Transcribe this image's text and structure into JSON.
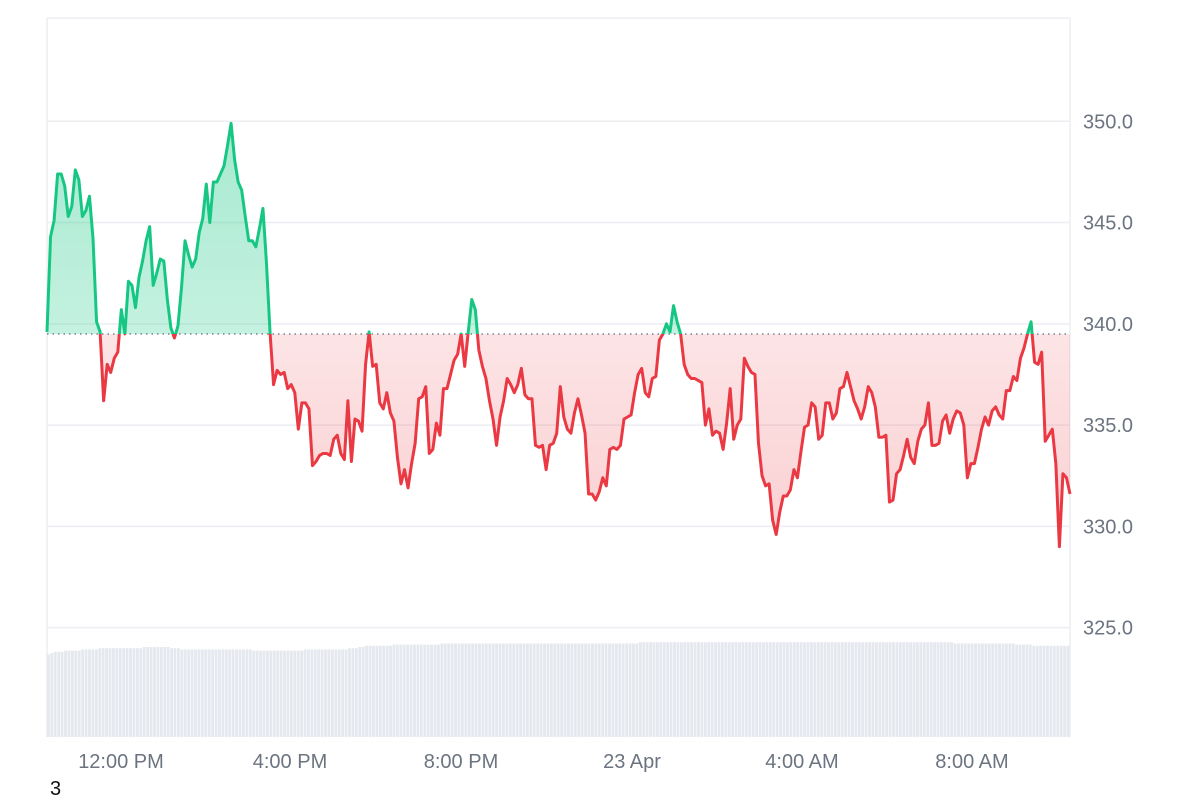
{
  "chart_data": {
    "type": "area",
    "baseline": 339.5,
    "ylim": [
      319.6,
      355.1
    ],
    "y_ticks": [
      "325.0",
      "330.0",
      "335.0",
      "340.0",
      "345.0",
      "350.0"
    ],
    "x_ticks": [
      "12:00 PM",
      "4:00 PM",
      "8:00 PM",
      "23 Apr",
      "4:00 AM",
      "8:00 AM"
    ],
    "grid": true,
    "series": [
      {
        "values": [
          339.6,
          344.3,
          345.1,
          347.4,
          347.4,
          346.8,
          345.3,
          345.8,
          347.6,
          347.1,
          345.3,
          345.6,
          346.3,
          344.2,
          340.1,
          339.6,
          336.2,
          338.0,
          337.6,
          338.3,
          338.6,
          340.7,
          339.5,
          342.1,
          341.9,
          340.8,
          342.3,
          343.1,
          344.1,
          344.8,
          341.9,
          342.5,
          343.2,
          343.1,
          341.2,
          339.8,
          339.3,
          339.9,
          341.8,
          344.1,
          343.4,
          342.8,
          343.2,
          344.5,
          345.2,
          346.9,
          345.0,
          347.0,
          347.0,
          347.4,
          347.8,
          348.8,
          349.9,
          348.1,
          347.0,
          346.6,
          345.3,
          344.1,
          344.1,
          343.8,
          344.7,
          345.7,
          343.0,
          339.6,
          337.0,
          337.7,
          337.5,
          337.6,
          336.8,
          337.0,
          336.6,
          334.8,
          336.1,
          336.1,
          335.8,
          333.0,
          333.2,
          333.5,
          333.6,
          333.6,
          333.5,
          334.3,
          334.5,
          333.6,
          333.3,
          336.2,
          333.2,
          335.3,
          335.2,
          334.7,
          338.0,
          339.6,
          337.9,
          338.0,
          336.1,
          335.8,
          336.6,
          335.6,
          335.2,
          333.4,
          332.1,
          332.8,
          331.9,
          333.1,
          334.1,
          336.3,
          336.4,
          336.9,
          333.6,
          333.8,
          335.1,
          334.5,
          336.8,
          336.8,
          337.5,
          338.2,
          338.5,
          339.5,
          337.9,
          339.6,
          341.2,
          340.7,
          338.7,
          337.9,
          337.3,
          336.2,
          335.3,
          334.0,
          335.4,
          336.2,
          337.3,
          337.0,
          336.6,
          337.0,
          337.8,
          336.5,
          336.3,
          336.3,
          334.0,
          333.9,
          334.0,
          332.8,
          334.0,
          334.1,
          334.6,
          336.9,
          335.4,
          334.8,
          334.6,
          335.6,
          336.3,
          335.5,
          334.6,
          331.6,
          331.6,
          331.3,
          331.7,
          332.4,
          332.0,
          333.8,
          333.9,
          333.8,
          334.0,
          335.3,
          335.4,
          335.5,
          336.6,
          337.5,
          337.8,
          336.6,
          336.4,
          337.3,
          337.4,
          339.2,
          339.5,
          340.0,
          339.6,
          340.9,
          340.1,
          339.5,
          338.0,
          337.5,
          337.3,
          337.3,
          337.2,
          337.1,
          335.0,
          335.8,
          334.5,
          334.7,
          334.6,
          333.8,
          335.1,
          336.8,
          334.3,
          335.0,
          335.3,
          338.3,
          337.9,
          337.6,
          337.5,
          334.1,
          332.5,
          332.0,
          332.1,
          330.3,
          329.6,
          330.7,
          331.5,
          331.5,
          331.8,
          332.8,
          332.4,
          333.7,
          334.9,
          335.0,
          336.1,
          335.9,
          334.3,
          334.5,
          336.1,
          336.1,
          335.3,
          335.6,
          336.8,
          336.9,
          337.6,
          336.9,
          336.2,
          335.8,
          335.3,
          335.9,
          336.9,
          336.6,
          335.9,
          334.4,
          334.4,
          334.5,
          331.2,
          331.3,
          332.6,
          332.8,
          333.5,
          334.3,
          333.4,
          333.1,
          334.2,
          334.8,
          335.0,
          336.1,
          334.0,
          334.0,
          334.1,
          335.2,
          335.5,
          334.6,
          335.3,
          335.7,
          335.6,
          335.0,
          332.4,
          333.1,
          333.1,
          333.9,
          334.8,
          335.4,
          335.0,
          335.7,
          335.9,
          335.5,
          335.3,
          336.7,
          336.7,
          337.4,
          337.2,
          338.3,
          338.8,
          339.5,
          340.1,
          338.1,
          338.0,
          338.6,
          334.2,
          334.5,
          334.8,
          333.1,
          329.0,
          332.6,
          332.4,
          331.6
        ]
      }
    ],
    "volume": [
      0.69,
      0.7,
      0.71,
      0.71,
      0.71,
      0.72,
      0.72,
      0.72,
      0.72,
      0.72,
      0.73,
      0.73,
      0.73,
      0.73,
      0.73,
      0.74,
      0.74,
      0.74,
      0.74,
      0.74,
      0.74,
      0.74,
      0.74,
      0.74,
      0.74,
      0.74,
      0.74,
      0.74,
      0.75,
      0.75,
      0.75,
      0.75,
      0.75,
      0.75,
      0.75,
      0.75,
      0.74,
      0.74,
      0.74,
      0.73,
      0.73,
      0.73,
      0.73,
      0.73,
      0.73,
      0.73,
      0.73,
      0.73,
      0.73,
      0.73,
      0.73,
      0.73,
      0.73,
      0.73,
      0.73,
      0.73,
      0.73,
      0.73,
      0.73,
      0.73,
      0.72,
      0.72,
      0.72,
      0.72,
      0.72,
      0.72,
      0.72,
      0.72,
      0.72,
      0.72,
      0.72,
      0.72,
      0.72,
      0.72,
      0.72,
      0.73,
      0.73,
      0.73,
      0.73,
      0.73,
      0.73,
      0.73,
      0.73,
      0.73,
      0.73,
      0.73,
      0.73,
      0.73,
      0.74,
      0.74,
      0.74,
      0.75,
      0.75,
      0.76,
      0.76,
      0.76,
      0.76,
      0.76,
      0.76,
      0.76,
      0.76,
      0.77,
      0.77,
      0.77,
      0.77,
      0.77,
      0.77,
      0.77,
      0.77,
      0.77,
      0.77,
      0.77,
      0.77,
      0.77,
      0.77,
      0.78,
      0.78,
      0.78,
      0.78,
      0.78,
      0.78,
      0.78,
      0.78,
      0.78,
      0.78,
      0.78,
      0.78,
      0.78,
      0.78,
      0.78,
      0.78,
      0.78,
      0.78,
      0.78,
      0.78,
      0.78,
      0.78,
      0.78,
      0.78,
      0.78,
      0.78,
      0.78,
      0.78,
      0.78,
      0.78,
      0.78,
      0.78,
      0.78,
      0.78,
      0.78,
      0.78,
      0.78,
      0.78,
      0.78,
      0.78,
      0.78,
      0.78,
      0.78,
      0.78,
      0.78,
      0.78,
      0.78,
      0.78,
      0.78,
      0.78,
      0.78,
      0.78,
      0.78,
      0.78,
      0.78,
      0.78,
      0.78,
      0.78,
      0.79,
      0.79,
      0.79,
      0.79,
      0.79,
      0.79,
      0.79,
      0.79,
      0.79,
      0.79,
      0.79,
      0.79,
      0.79,
      0.79,
      0.79,
      0.79,
      0.79,
      0.79,
      0.79,
      0.79,
      0.79,
      0.79,
      0.79,
      0.79,
      0.79,
      0.79,
      0.79,
      0.79,
      0.79,
      0.79,
      0.79,
      0.79,
      0.79,
      0.79,
      0.79,
      0.79,
      0.79,
      0.79,
      0.79,
      0.79,
      0.79,
      0.79,
      0.79,
      0.79,
      0.79,
      0.79,
      0.79,
      0.79,
      0.79,
      0.79,
      0.79,
      0.79,
      0.79,
      0.79,
      0.79,
      0.79,
      0.79,
      0.79,
      0.79,
      0.79,
      0.79,
      0.79,
      0.79,
      0.79,
      0.79,
      0.79,
      0.79,
      0.79,
      0.79,
      0.79,
      0.79,
      0.79,
      0.79,
      0.79,
      0.79,
      0.79,
      0.79,
      0.79,
      0.79,
      0.79,
      0.79,
      0.79,
      0.79,
      0.79,
      0.79,
      0.79,
      0.79,
      0.79,
      0.79,
      0.79,
      0.79,
      0.79,
      0.78,
      0.78,
      0.78,
      0.78,
      0.78,
      0.78,
      0.78,
      0.78,
      0.78,
      0.78,
      0.78,
      0.78,
      0.78,
      0.78,
      0.78,
      0.78,
      0.78,
      0.78,
      0.77,
      0.77,
      0.77,
      0.77,
      0.77,
      0.76,
      0.76,
      0.76,
      0.76,
      0.76,
      0.76,
      0.76,
      0.76,
      0.76,
      0.76,
      0.76
    ]
  },
  "colors": {
    "up_line": "#16c784",
    "down_line": "#ea3943",
    "up_fill": "#16c784",
    "down_fill": "#ea3943",
    "baseline": "#7a8190",
    "grid": "#eceef2",
    "axis_text": "#6b7480",
    "volume": "#e5e8ee"
  },
  "footer": {
    "corner_text": "3"
  }
}
